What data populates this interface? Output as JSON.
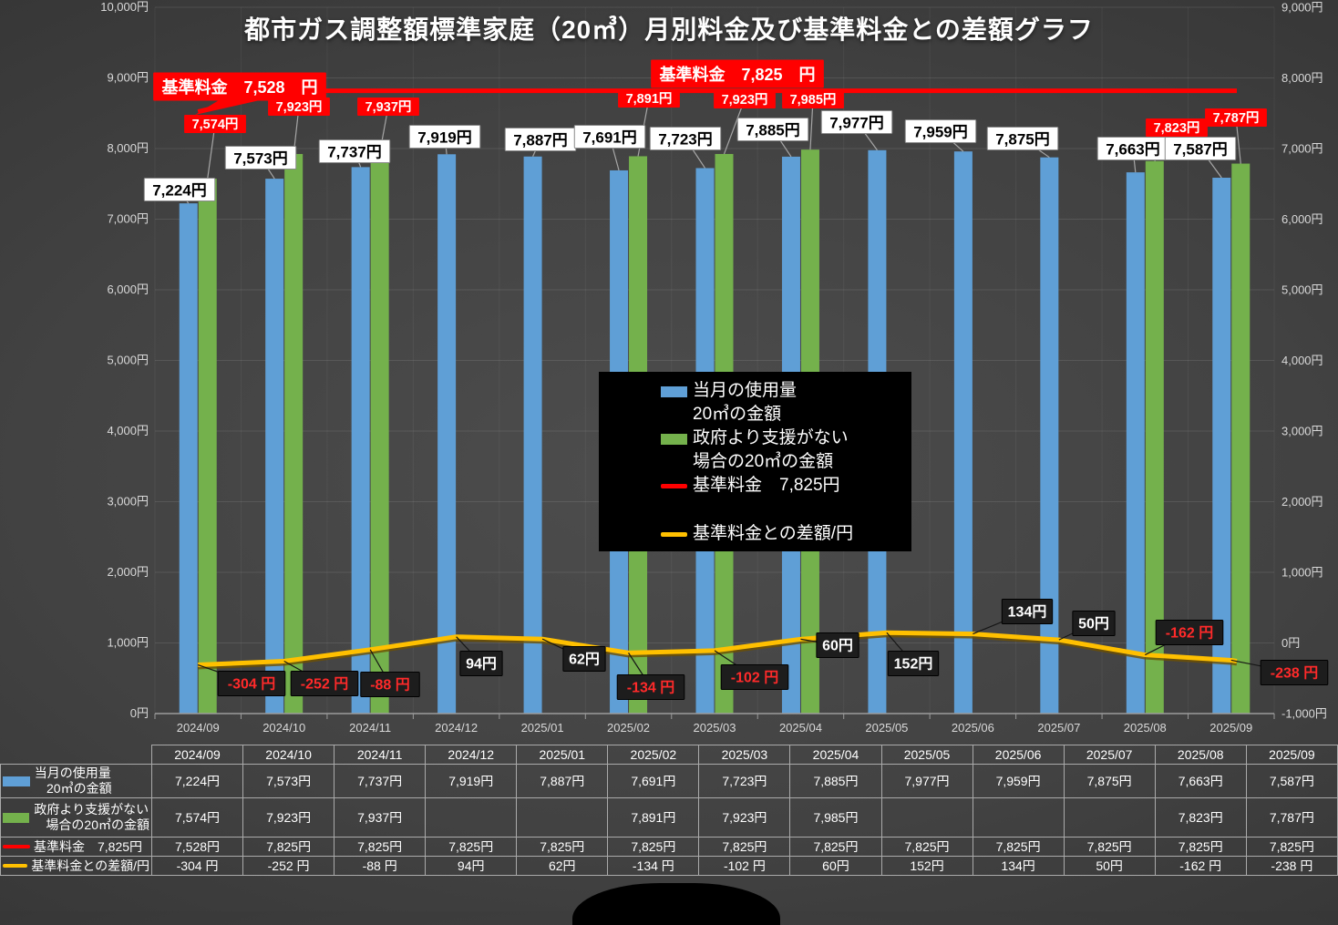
{
  "title": "都市ガス調整額標準家庭（20㎥）月別料金及び基準料金との差額グラフ",
  "colors": {
    "bar_blue": "#5F9FD6",
    "bar_green": "#74B14C",
    "line_red": "#FF0000",
    "line_gold": "#FFC000",
    "label_negative": "#FF2A2A",
    "axis_text": "#D9D9D9"
  },
  "chart_data": {
    "type": "combo-bar-line",
    "categories": [
      "2024/09",
      "2024/10",
      "2024/11",
      "2024/12",
      "2025/01",
      "2025/02",
      "2025/03",
      "2025/04",
      "2025/05",
      "2025/06",
      "2025/07",
      "2025/08",
      "2025/09"
    ],
    "series": [
      {
        "name": "当月の使用量 20㎥の金額",
        "type": "bar",
        "axis": "left",
        "color": "#5F9FD6",
        "values": [
          7224,
          7573,
          7737,
          7919,
          7887,
          7691,
          7723,
          7885,
          7977,
          7959,
          7875,
          7663,
          7587
        ],
        "labels": [
          "7,224円",
          "7,573円",
          "7,737円",
          "7,919円",
          "7,887円",
          "7,691円",
          "7,723円",
          "7,885円",
          "7,977円",
          "7,959円",
          "7,875円",
          "7,663円",
          "7,587円"
        ]
      },
      {
        "name": "政府より支援がない場合の20㎥の金額",
        "type": "bar",
        "axis": "left",
        "color": "#74B14C",
        "values": [
          7574,
          7923,
          7937,
          null,
          null,
          7891,
          7923,
          7985,
          null,
          null,
          null,
          7823,
          7787
        ],
        "labels": [
          "7,574円",
          "7,923円",
          "7,937円",
          "",
          "",
          "7,891円",
          "7,923円",
          "7,985円",
          "",
          "",
          "",
          "7,823円",
          "7,787円"
        ]
      },
      {
        "name": "基準料金　7,825円",
        "type": "line",
        "axis": "right",
        "color": "#FF0000",
        "values": [
          7528,
          7825,
          7825,
          7825,
          7825,
          7825,
          7825,
          7825,
          7825,
          7825,
          7825,
          7825,
          7825
        ]
      },
      {
        "name": "基準料金との差額/円",
        "type": "line",
        "axis": "right",
        "color": "#FFC000",
        "values": [
          -304,
          -252,
          -88,
          94,
          62,
          -134,
          -102,
          60,
          152,
          134,
          50,
          -162,
          -238
        ],
        "labels": [
          "-304 円",
          "-252 円",
          "-88 円",
          "94円",
          "62円",
          "-134 円",
          "-102 円",
          "60円",
          "152円",
          "134円",
          "50円",
          "-162 円",
          "-238 円"
        ]
      }
    ],
    "left_axis": {
      "min": 0,
      "max": 10000,
      "step": 1000,
      "tick_labels": [
        "0円",
        "1,000円",
        "2,000円",
        "3,000円",
        "4,000円",
        "5,000円",
        "6,000円",
        "7,000円",
        "8,000円",
        "9,000円",
        "10,000円"
      ]
    },
    "right_axis": {
      "min": -1000,
      "max": 9000,
      "step": 1000,
      "tick_labels": [
        "-1,000円",
        "0円",
        "1,000円",
        "2,000円",
        "3,000円",
        "4,000円",
        "5,000円",
        "6,000円",
        "7,000円",
        "8,000円",
        "9,000円"
      ]
    },
    "annotations": [
      {
        "text": "基準料金　7,528　円"
      },
      {
        "text": "基準料金　7,825　円"
      }
    ],
    "grid": true,
    "legend_position": "center"
  },
  "legend": {
    "items": [
      {
        "swatch": "bar-blue",
        "line1": "当月の使用量",
        "line2": "20㎥の金額"
      },
      {
        "swatch": "bar-green",
        "line1": "政府より支援がない",
        "line2": "場合の20㎥の金額"
      },
      {
        "swatch": "line-red",
        "line1": "基準料金　7,825円"
      },
      {
        "swatch": "line-gold",
        "line1": "基準料金との差額/円"
      }
    ]
  },
  "table": {
    "columns": [
      "2024/09",
      "2024/10",
      "2024/11",
      "2024/12",
      "2025/01",
      "2025/02",
      "2025/03",
      "2025/04",
      "2025/05",
      "2025/06",
      "2025/07",
      "2025/08",
      "2025/09"
    ],
    "rows": [
      {
        "swatch": "bar-blue",
        "label_lines": [
          "当月の使用量",
          "20㎥の金額"
        ],
        "cells": [
          "7,224円",
          "7,573円",
          "7,737円",
          "7,919円",
          "7,887円",
          "7,691円",
          "7,723円",
          "7,885円",
          "7,977円",
          "7,959円",
          "7,875円",
          "7,663円",
          "7,587円"
        ]
      },
      {
        "swatch": "bar-green",
        "label_lines": [
          "政府より支援がない",
          "場合の20㎥の金額"
        ],
        "cells": [
          "7,574円",
          "7,923円",
          "7,937円",
          "",
          "",
          "7,891円",
          "7,923円",
          "7,985円",
          "",
          "",
          "",
          "7,823円",
          "7,787円"
        ]
      },
      {
        "swatch": "line-red",
        "label_lines": [
          "基準料金　7,825円"
        ],
        "cells": [
          "7,528円",
          "7,825円",
          "7,825円",
          "7,825円",
          "7,825円",
          "7,825円",
          "7,825円",
          "7,825円",
          "7,825円",
          "7,825円",
          "7,825円",
          "7,825円",
          "7,825円"
        ]
      },
      {
        "swatch": "line-gold",
        "label_lines": [
          "基準料金との差額/円"
        ],
        "cells": [
          "-304 円",
          "-252 円",
          "-88 円",
          "94円",
          "62円",
          "-134 円",
          "-102 円",
          "60円",
          "152円",
          "134円",
          "50円",
          "-162 円",
          "-238 円"
        ]
      }
    ]
  }
}
